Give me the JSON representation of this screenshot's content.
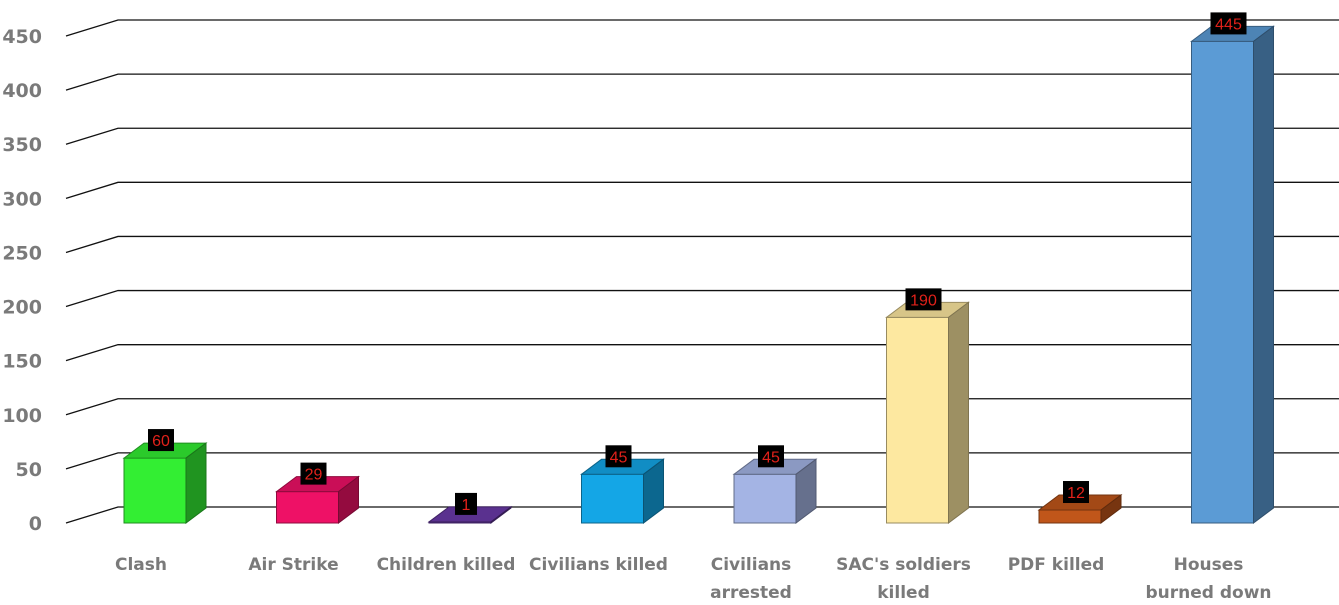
{
  "chart_data": {
    "type": "bar",
    "categories": [
      [
        "Clash"
      ],
      [
        "Air Strike"
      ],
      [
        "Children killed"
      ],
      [
        "Civilians killed"
      ],
      [
        "Civilians",
        "arrested"
      ],
      [
        "SAC's soldiers",
        "killed"
      ],
      [
        "PDF killed"
      ],
      [
        "Houses",
        "burned down"
      ]
    ],
    "values": [
      60,
      29,
      1,
      45,
      45,
      190,
      12,
      445
    ],
    "colors": [
      "#33ee33",
      "#ee1166",
      "#6a3aa8",
      "#14a6e6",
      "#a4b4e4",
      "#fde8a0",
      "#c0561a",
      "#5b9bd5"
    ],
    "ylim": [
      0,
      450
    ],
    "yticks": [
      0,
      50,
      100,
      150,
      200,
      250,
      300,
      350,
      400,
      450
    ],
    "grid": true,
    "style": "3d-column",
    "data_labels": true
  }
}
